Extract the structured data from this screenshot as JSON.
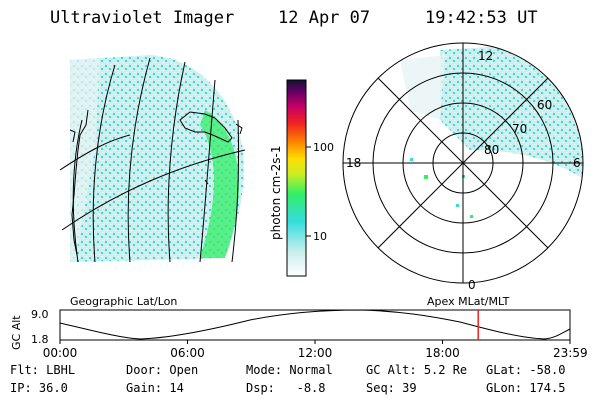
{
  "header": {
    "instrument": "Ultraviolet Imager",
    "date": "12 Apr 07",
    "time": "19:42:53 UT"
  },
  "colorbar": {
    "unit_label": "photon cm-2s-1",
    "ticks": [
      "100",
      "10"
    ]
  },
  "polar": {
    "mlt_labels": {
      "top": "12",
      "left": "18",
      "right": "6",
      "bottom": "0"
    },
    "lat_labels": [
      "60",
      "70",
      "80"
    ]
  },
  "captions": {
    "left": "Geographic Lat/Lon",
    "right": "Apex MLat/MLT"
  },
  "altitude_plot": {
    "ylabel": "GC Alt",
    "ymax": "9.0",
    "ymin": "1.8",
    "xticks": [
      "00:00",
      "06:00",
      "12:00",
      "18:00",
      "23:59"
    ],
    "current_fraction": 0.82
  },
  "info": {
    "filter_label": "Flt:",
    "filter_value": "LBHL",
    "ip_label": "IP:",
    "ip_value": "36.0",
    "door_label": "Door:",
    "door_value": "Open",
    "gain_label": "Gain:",
    "gain_value": "14",
    "mode_label": "Mode:",
    "mode_value": "Normal",
    "dsp_label": "Dsp:",
    "dsp_value": "-8.8",
    "gcalt_label": "GC Alt:",
    "gcalt_value": "5.2 Re",
    "seq_label": "Seq:",
    "seq_value": "39",
    "glat_label": "GLat:",
    "glat_value": "-58.0",
    "glon_label": "GLon:",
    "glon_value": "174.5"
  },
  "colors": {
    "cyan": "#33dddd",
    "light": "#cceeee",
    "green": "#33ee66",
    "marker": "#ee2222"
  }
}
